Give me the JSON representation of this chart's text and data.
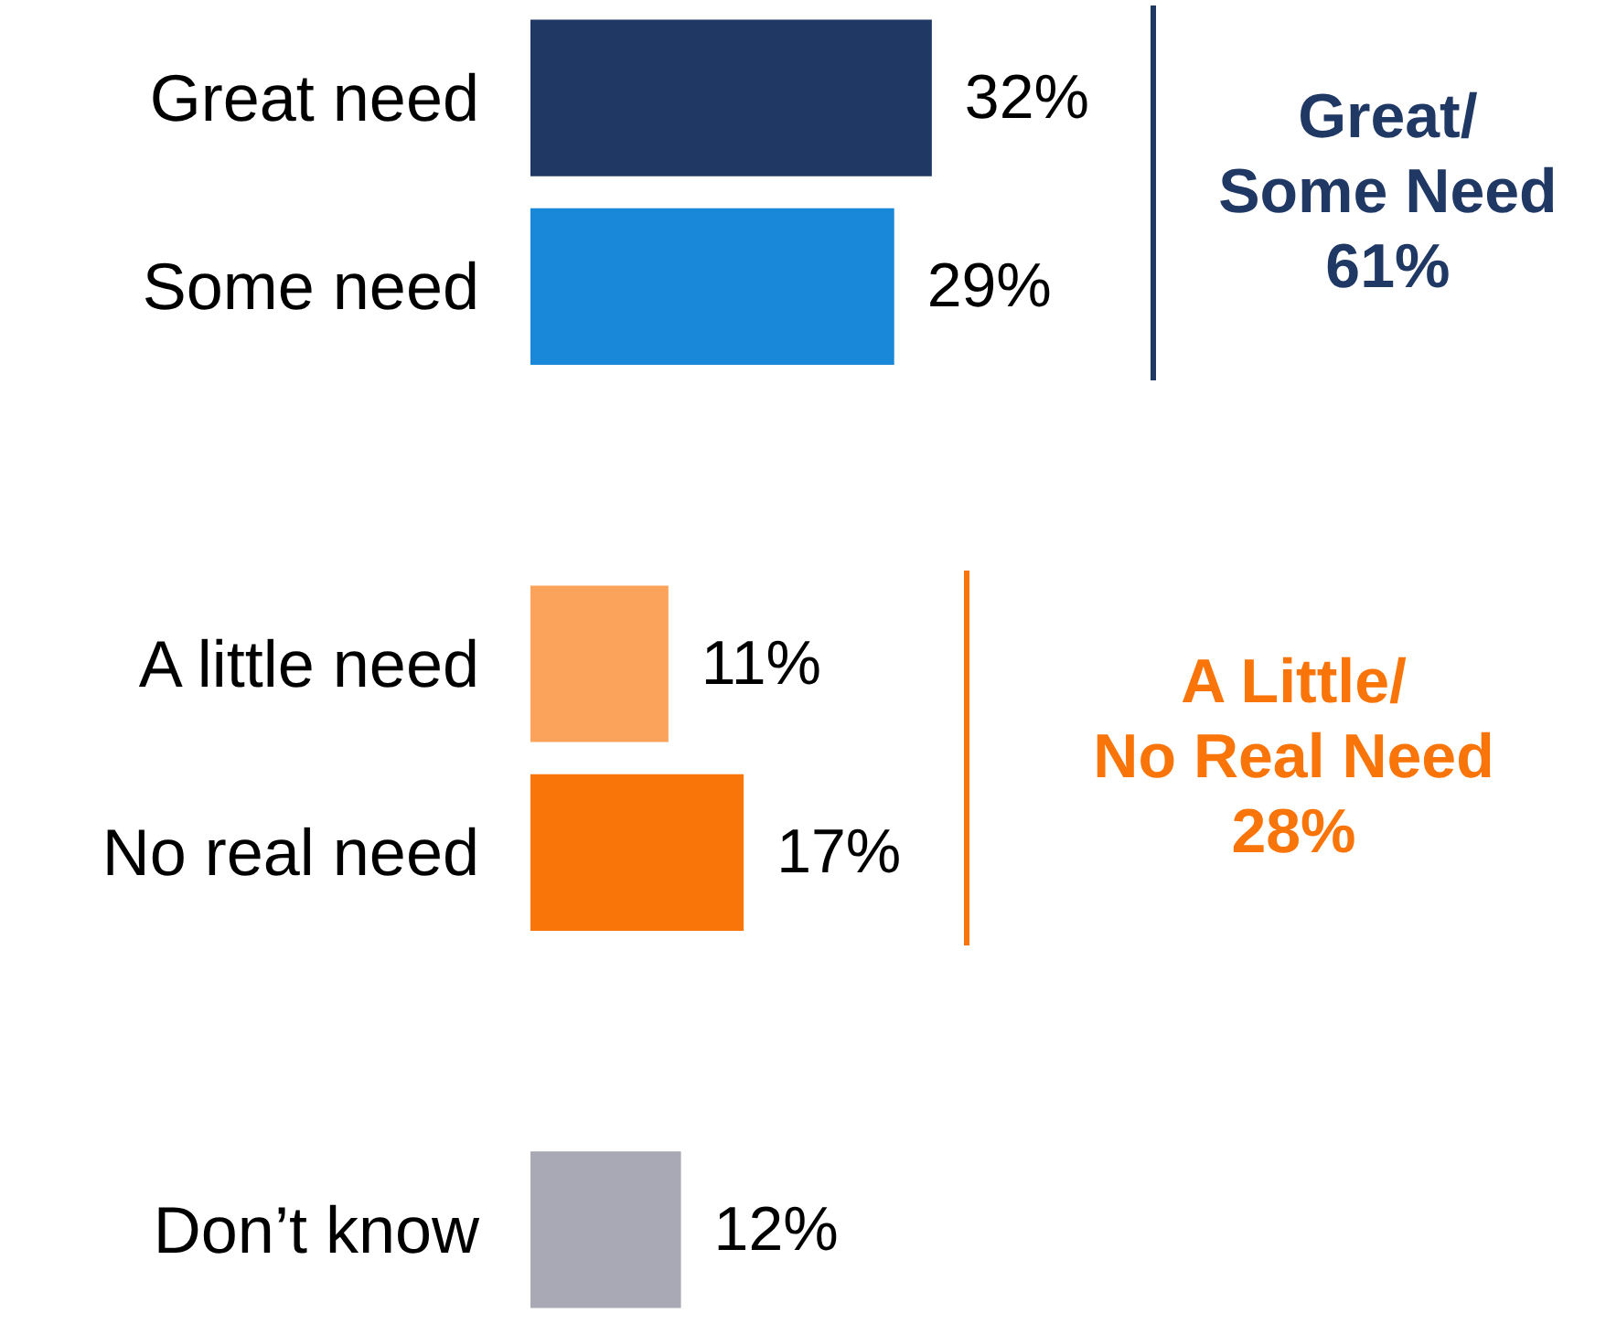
{
  "chart_data": {
    "type": "bar",
    "orientation": "horizontal",
    "categories": [
      "Great need",
      "Some need",
      null,
      "A little need",
      "No real need",
      null,
      "Don’t know"
    ],
    "values": [
      32,
      29,
      null,
      11,
      17,
      null,
      12
    ],
    "colors": [
      "#1f3864",
      "#1a88d8",
      null,
      "#fba35a",
      "#f97509",
      null,
      "#a8a9b5"
    ],
    "value_labels": [
      "32%",
      "29%",
      null,
      "11%",
      "17%",
      null,
      "12%"
    ],
    "annotations": [
      "Great/\nSome Need\n61%",
      "A Little/\nNo Real Need\n28%"
    ]
  }
}
